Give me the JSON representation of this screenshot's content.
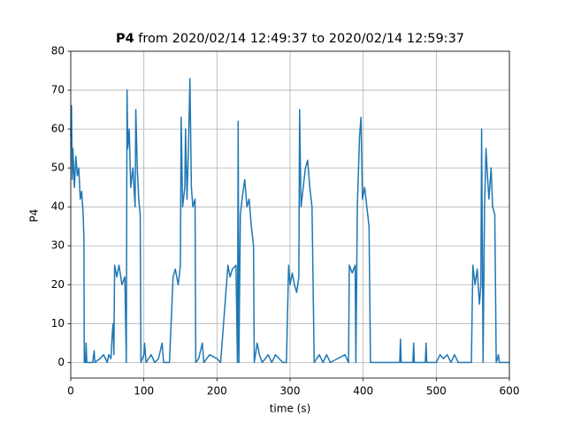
{
  "chart_data": {
    "type": "line",
    "title_bold": "P4",
    "title": "from 2020/02/14 12:49:37 to 2020/02/14 12:59:37",
    "x_label": "time (s)",
    "y_label": "P4",
    "xlim": [
      0,
      600
    ],
    "xticks": [
      0,
      100,
      200,
      300,
      400,
      500,
      600
    ],
    "ylim": [
      -4,
      80
    ],
    "yticks": [
      0,
      10,
      20,
      30,
      40,
      50,
      60,
      70,
      80
    ],
    "grid": true,
    "series": [
      {
        "color": "#1f77b4",
        "x": [
          0,
          1,
          2,
          3,
          5,
          7,
          9,
          11,
          13,
          15,
          17,
          18,
          18.5,
          20,
          21,
          22,
          30,
          32,
          33,
          40,
          45,
          50,
          52,
          55,
          57,
          58,
          59,
          60,
          63,
          66,
          70,
          74,
          76,
          77,
          78,
          80,
          82,
          85,
          88,
          89,
          91,
          93,
          95,
          96,
          100,
          101,
          103,
          110,
          115,
          120,
          125,
          127,
          135,
          140,
          143,
          147,
          150,
          151,
          153,
          156,
          157,
          159,
          161,
          163,
          165,
          167,
          170,
          171,
          175,
          180,
          182,
          190,
          200,
          205,
          215,
          218,
          221,
          226,
          228,
          229,
          230,
          232,
          235,
          238,
          241,
          244,
          247,
          250,
          251,
          255,
          258,
          262,
          270,
          275,
          280,
          290,
          295,
          298,
          300,
          303,
          306,
          309,
          312,
          313,
          315,
          318,
          321,
          324,
          327,
          330,
          333,
          340,
          345,
          350,
          355,
          365,
          375,
          380,
          381,
          385,
          389,
          390,
          392,
          395,
          397,
          399,
          402,
          405,
          408,
          410,
          415,
          450,
          451,
          452,
          468,
          469,
          470,
          485,
          486,
          487,
          500,
          505,
          510,
          515,
          520,
          525,
          530,
          548,
          550,
          553,
          556,
          559,
          561,
          562,
          564,
          566,
          568,
          570,
          572,
          575,
          577,
          580,
          582,
          585,
          586,
          600
        ],
        "values": [
          58,
          66,
          47,
          55,
          45,
          53,
          48,
          50,
          42,
          44,
          38,
          32,
          0,
          0,
          5,
          0,
          0,
          3,
          0,
          1,
          2,
          0,
          2,
          1,
          8,
          10,
          2,
          25,
          22,
          25,
          20,
          22,
          0,
          70,
          55,
          60,
          45,
          50,
          40,
          65,
          50,
          42,
          38,
          0,
          2,
          5,
          0,
          2,
          0,
          1,
          5,
          0,
          0,
          22,
          24,
          20,
          25,
          63,
          40,
          45,
          60,
          42,
          55,
          73,
          45,
          40,
          42,
          0,
          1,
          5,
          0,
          2,
          1,
          0,
          25,
          22,
          24,
          25,
          0,
          62,
          0,
          38,
          43,
          47,
          40,
          42,
          35,
          30,
          0,
          5,
          2,
          0,
          2,
          0,
          2,
          0,
          0,
          25,
          20,
          23,
          20,
          18,
          22,
          65,
          40,
          45,
          50,
          52,
          45,
          40,
          0,
          2,
          0,
          2,
          0,
          1,
          2,
          0,
          25,
          23,
          25,
          0,
          40,
          58,
          63,
          42,
          45,
          40,
          35,
          0,
          0,
          0,
          6,
          0,
          0,
          5,
          0,
          0,
          5,
          0,
          0,
          2,
          1,
          2,
          0,
          2,
          0,
          0,
          25,
          20,
          24,
          15,
          20,
          60,
          0,
          40,
          55,
          48,
          42,
          50,
          40,
          38,
          0,
          2,
          0,
          0
        ]
      }
    ]
  }
}
